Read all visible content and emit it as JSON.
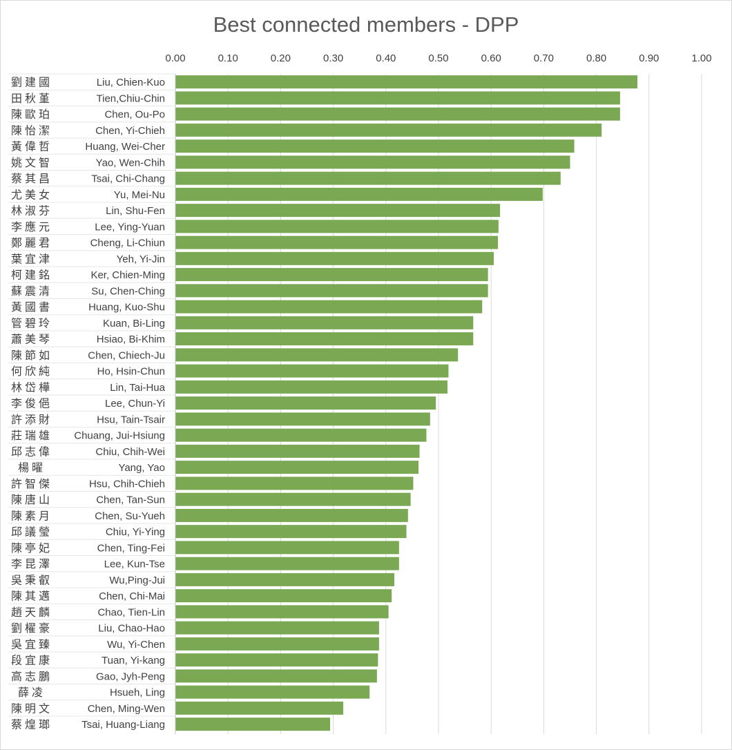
{
  "chart_data": {
    "type": "bar",
    "orientation": "horizontal",
    "title": "Best connected members - DPP",
    "xlim": [
      0,
      1
    ],
    "x_ticks": [
      "0.00",
      "0.10",
      "0.20",
      "0.30",
      "0.40",
      "0.50",
      "0.60",
      "0.70",
      "0.80",
      "0.90",
      "1.00"
    ],
    "x_axis_position": "top",
    "grid": true,
    "bar_color": "#7aa853",
    "categories": [
      "Liu, Chien-Kuo",
      "Tien,Chiu-Chin",
      "Chen, Ou-Po",
      "Chen, Yi-Chieh",
      "Huang, Wei-Cher",
      "Yao, Wen-Chih",
      "Tsai, Chi-Chang",
      "Yu, Mei-Nu",
      "Lin, Shu-Fen",
      "Lee, Ying-Yuan",
      "Cheng, Li-Chiun",
      "Yeh, Yi-Jin",
      "Ker, Chien-Ming",
      "Su, Chen-Ching",
      "Huang, Kuo-Shu",
      "Kuan, Bi-Ling",
      "Hsiao, Bi-Khim",
      "Chen, Chiech-Ju",
      "Ho, Hsin-Chun",
      "Lin, Tai-Hua",
      "Lee, Chun-Yi",
      "Hsu, Tain-Tsair",
      "Chuang, Jui-Hsiung",
      "Chiu, Chih-Wei",
      "Yang, Yao",
      "Hsu, Chih-Chieh",
      "Chen, Tan-Sun",
      "Chen, Su-Yueh",
      "Chiu, Yi-Ying",
      "Chen, Ting-Fei",
      "Lee, Kun-Tse",
      "Wu,Ping-Jui",
      "Chen, Chi-Mai",
      "Chao, Tien-Lin",
      "Liu, Chao-Hao",
      "Wu, Yi-Chen",
      "Tuan, Yi-kang",
      "Gao, Jyh-Peng",
      "Hsueh, Ling",
      "Chen, Ming-Wen",
      "Tsai, Huang-Liang"
    ],
    "chinese_names": [
      "劉建國",
      "田秋堇",
      "陳歐珀",
      "陳怡潔",
      "黃偉哲",
      "姚文智",
      "蔡其昌",
      "尤美女",
      "林淑芬",
      "李應元",
      "鄭麗君",
      "葉宜津",
      "柯建銘",
      "蘇震清",
      "黃國書",
      "管碧玲",
      "蕭美琴",
      "陳節如",
      "何欣純",
      "林岱樺",
      "李俊俋",
      "許添財",
      "莊瑞雄",
      "邱志偉",
      "楊曜",
      "許智傑",
      "陳唐山",
      "陳素月",
      "邱議瑩",
      "陳亭妃",
      "李昆澤",
      "吳秉叡",
      "陳其邁",
      "趙天麟",
      "劉櫂豪",
      "吳宜臻",
      "段宜康",
      "高志鵬",
      "薛凌",
      "陳明文",
      "蔡煌瑯"
    ],
    "values": [
      0.878,
      0.845,
      0.845,
      0.81,
      0.758,
      0.75,
      0.732,
      0.698,
      0.617,
      0.614,
      0.613,
      0.605,
      0.594,
      0.594,
      0.583,
      0.566,
      0.566,
      0.537,
      0.519,
      0.517,
      0.495,
      0.484,
      0.477,
      0.464,
      0.462,
      0.452,
      0.447,
      0.442,
      0.439,
      0.425,
      0.425,
      0.416,
      0.411,
      0.405,
      0.387,
      0.387,
      0.385,
      0.383,
      0.369,
      0.319,
      0.294
    ]
  }
}
